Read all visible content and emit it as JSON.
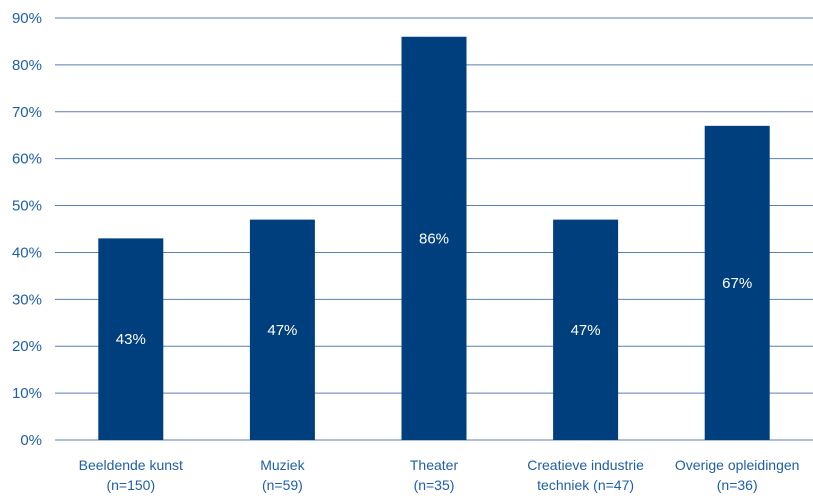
{
  "chart_data": {
    "type": "bar",
    "title": "",
    "subtitle": "",
    "categories": [
      [
        "Beeldende kunst",
        "(n=150)"
      ],
      [
        "Muziek",
        "(n=59)"
      ],
      [
        "Theater",
        "(n=35)"
      ],
      [
        "Creatieve industrie",
        "techniek (n=47)"
      ],
      [
        "Overige opleidingen",
        "(n=36)"
      ]
    ],
    "values": [
      43,
      47,
      86,
      47,
      67
    ],
    "data_labels": [
      "43%",
      "47%",
      "86%",
      "47%",
      "67%"
    ],
    "yticks": [
      "0%",
      "10%",
      "20%",
      "30%",
      "40%",
      "50%",
      "60%",
      "70%",
      "80%",
      "90%"
    ],
    "ylim": [
      0,
      90
    ],
    "grid": true,
    "legend": "none",
    "colors": {
      "bar": "#003f7d",
      "text": "#1f5fa8",
      "grid": "#5b7fb0",
      "data_label": "#ffffff"
    }
  }
}
